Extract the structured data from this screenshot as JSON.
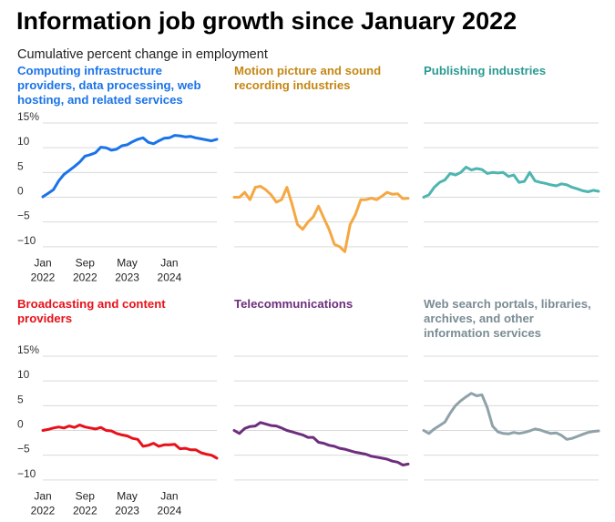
{
  "title": "Information job growth since January 2022",
  "subtitle": "Cumulative percent change in employment",
  "chart_data": [
    {
      "type": "line",
      "panel": "Computing",
      "title": "Computing infrastructure providers, data processing, web hosting, and related services",
      "color": "#1a73e8",
      "ylim": [
        -12,
        16
      ],
      "yticks": [
        "15%",
        "10",
        "5",
        "0",
        "−5",
        "−10"
      ],
      "xticks": [
        [
          "Jan",
          "2022"
        ],
        [
          "Sep",
          "2022"
        ],
        [
          "May",
          "2023"
        ],
        [
          "Jan",
          "2024"
        ]
      ],
      "values": [
        0.1,
        0.8,
        1.5,
        3.3,
        4.6,
        5.4,
        6.2,
        7.1,
        8.3,
        8.6,
        9.0,
        10.1,
        10.0,
        9.5,
        9.7,
        10.4,
        10.6,
        11.2,
        11.7,
        12.0,
        11.1,
        10.8,
        11.4,
        11.9,
        12.0,
        12.5,
        12.4,
        12.2,
        12.3,
        12.0,
        11.8,
        11.6,
        11.4,
        11.7
      ]
    },
    {
      "type": "line",
      "panel": "Motion",
      "title": "Motion picture and sound recording industries",
      "color": "#f5a742",
      "ylim": [
        -12,
        16
      ],
      "values": [
        0.0,
        0.0,
        1.0,
        -0.5,
        2.0,
        2.2,
        1.5,
        0.5,
        -1.0,
        -0.5,
        2.0,
        -1.5,
        -5.5,
        -6.5,
        -5.0,
        -4.0,
        -1.8,
        -4.2,
        -6.5,
        -9.5,
        -10.0,
        -11.0,
        -5.5,
        -3.5,
        -0.5,
        -0.5,
        -0.2,
        -0.5,
        0.2,
        1.0,
        0.6,
        0.7,
        -0.3,
        -0.2
      ]
    },
    {
      "type": "line",
      "panel": "Publishing",
      "title": "Publishing industries",
      "color": "#4fb5b0",
      "ylim": [
        -12,
        16
      ],
      "values": [
        0.0,
        0.5,
        2.0,
        3.0,
        3.5,
        4.8,
        4.5,
        5.0,
        6.1,
        5.5,
        5.8,
        5.6,
        4.8,
        5.0,
        4.9,
        5.0,
        4.2,
        4.5,
        3.0,
        3.2,
        5.0,
        3.3,
        3.0,
        2.8,
        2.5,
        2.3,
        2.7,
        2.5,
        2.0,
        1.7,
        1.3,
        1.1,
        1.4,
        1.2
      ]
    },
    {
      "type": "line",
      "panel": "Broadcasting",
      "title": "Broadcasting and content providers",
      "color": "#e8111a",
      "ylim": [
        -12,
        16
      ],
      "yticks": [
        "15%",
        "10",
        "5",
        "0",
        "−5",
        "−10"
      ],
      "xticks": [
        [
          "Jan",
          "2022"
        ],
        [
          "Sep",
          "2022"
        ],
        [
          "May",
          "2023"
        ],
        [
          "Jan",
          "2024"
        ]
      ],
      "values": [
        0.0,
        0.2,
        0.5,
        0.7,
        0.5,
        0.9,
        0.6,
        1.1,
        0.7,
        0.5,
        0.3,
        0.6,
        0.0,
        -0.1,
        -0.6,
        -0.9,
        -1.1,
        -1.6,
        -1.8,
        -3.2,
        -3.0,
        -2.6,
        -3.2,
        -2.9,
        -2.9,
        -2.8,
        -3.7,
        -3.6,
        -3.9,
        -3.9,
        -4.5,
        -4.8,
        -5.0,
        -5.6
      ]
    },
    {
      "type": "line",
      "panel": "Telecom",
      "title": "Telecommunications",
      "color": "#6d2e7e",
      "ylim": [
        -12,
        16
      ],
      "values": [
        0.0,
        -0.6,
        0.4,
        0.8,
        0.9,
        1.6,
        1.3,
        1.0,
        0.9,
        0.5,
        0.0,
        -0.3,
        -0.6,
        -0.9,
        -1.4,
        -1.4,
        -2.4,
        -2.6,
        -3.0,
        -3.2,
        -3.6,
        -3.8,
        -4.1,
        -4.4,
        -4.6,
        -4.8,
        -5.2,
        -5.4,
        -5.6,
        -5.8,
        -6.2,
        -6.4,
        -7.0,
        -6.8
      ]
    },
    {
      "type": "line",
      "panel": "WebSearch",
      "title": "Web search portals, libraries, archives, and other information services",
      "color": "#8fa2aa",
      "ylim": [
        -12,
        16
      ],
      "values": [
        0.0,
        -0.6,
        0.3,
        1.0,
        1.7,
        3.5,
        5.0,
        6.0,
        6.8,
        7.5,
        7.0,
        7.2,
        4.6,
        0.9,
        -0.3,
        -0.6,
        -0.7,
        -0.4,
        -0.6,
        -0.4,
        -0.1,
        0.3,
        0.1,
        -0.3,
        -0.6,
        -0.5,
        -1.0,
        -1.8,
        -1.6,
        -1.2,
        -0.8,
        -0.4,
        -0.2,
        -0.1
      ]
    }
  ]
}
